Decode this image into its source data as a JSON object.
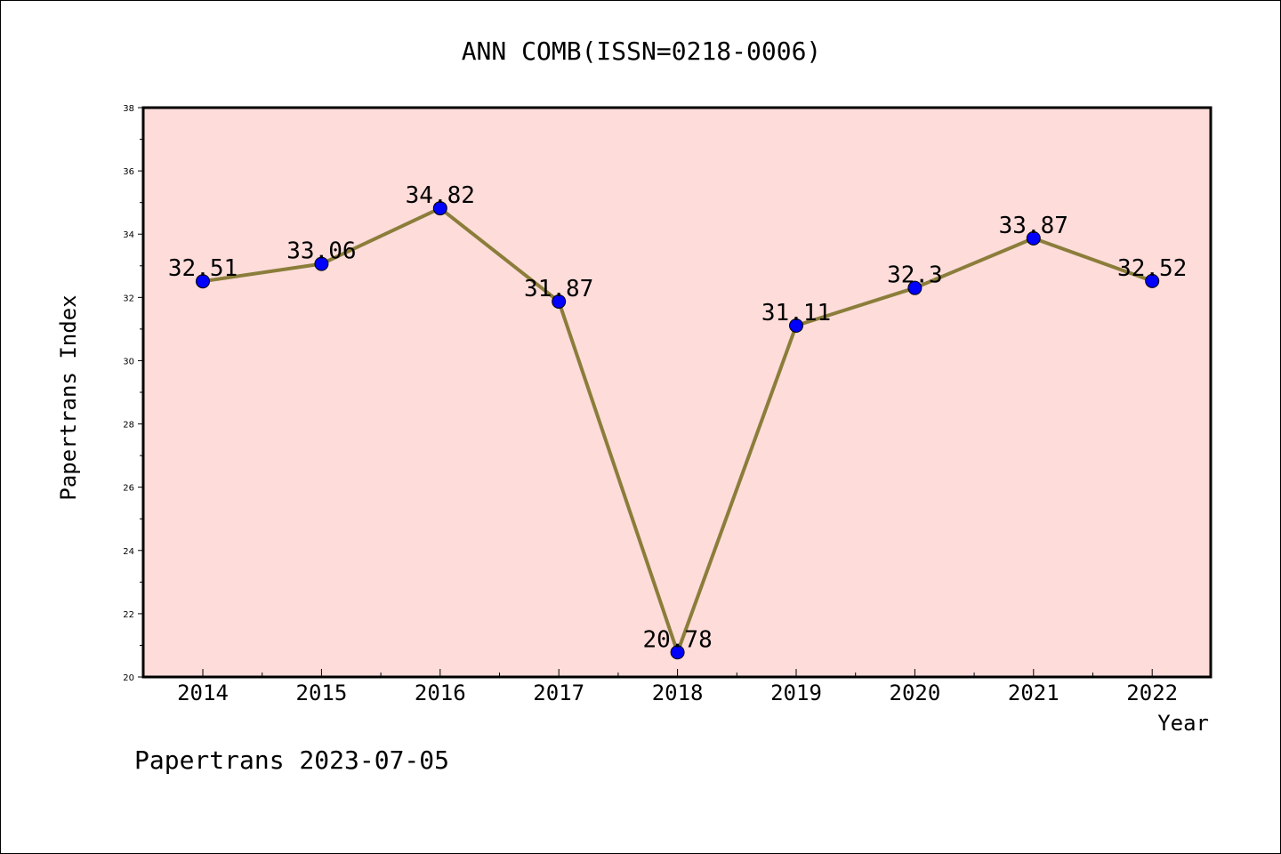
{
  "chart_data": {
    "type": "line",
    "title": "ANN COMB(ISSN=0218-0006)",
    "xlabel": "Year",
    "ylabel": "Papertrans Index",
    "categories": [
      "2014",
      "2015",
      "2016",
      "2017",
      "2018",
      "2019",
      "2020",
      "2021",
      "2022"
    ],
    "series": [
      {
        "values": [
          32.51,
          33.06,
          34.82,
          31.87,
          20.78,
          31.11,
          32.3,
          33.87,
          32.52
        ],
        "data_labels": [
          "32.51",
          "33.06",
          "34.82",
          "31.87",
          "20.78",
          "31.11",
          "32.3",
          "33.87",
          "32.52"
        ],
        "line_color": "#8B7D3A",
        "marker_color": "#0000FF"
      }
    ],
    "ylim": [
      20,
      38
    ],
    "yticks": [
      20,
      22,
      24,
      26,
      28,
      30,
      32,
      34,
      36,
      38
    ],
    "grid": false,
    "plot_background": "#FDDCDA",
    "footer": "Papertrans 2023-07-05"
  }
}
